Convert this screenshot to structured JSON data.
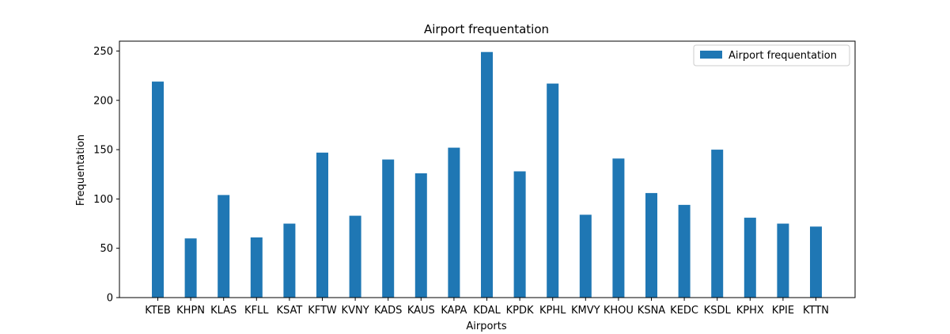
{
  "chart_data": {
    "type": "bar",
    "title": "Airport frequentation",
    "xlabel": "Airports",
    "ylabel": "Frequentation",
    "categories": [
      "KTEB",
      "KHPN",
      "KLAS",
      "KFLL",
      "KSAT",
      "KFTW",
      "KVNY",
      "KADS",
      "KAUS",
      "KAPA",
      "KDAL",
      "KPDK",
      "KPHL",
      "KMVY",
      "KHOU",
      "KSNA",
      "KEDC",
      "KSDL",
      "KPHX",
      "KPIE",
      "KTTN"
    ],
    "series": [
      {
        "name": "Airport frequentation",
        "color": "#1f77b4",
        "values": [
          219,
          60,
          104,
          61,
          75,
          147,
          83,
          140,
          126,
          152,
          249,
          128,
          217,
          84,
          141,
          106,
          94,
          150,
          81,
          75,
          72
        ]
      }
    ],
    "ylim": [
      0,
      260
    ],
    "yticks": [
      0,
      50,
      100,
      150,
      200,
      250
    ],
    "grid": false,
    "legend_position": "top-right"
  }
}
